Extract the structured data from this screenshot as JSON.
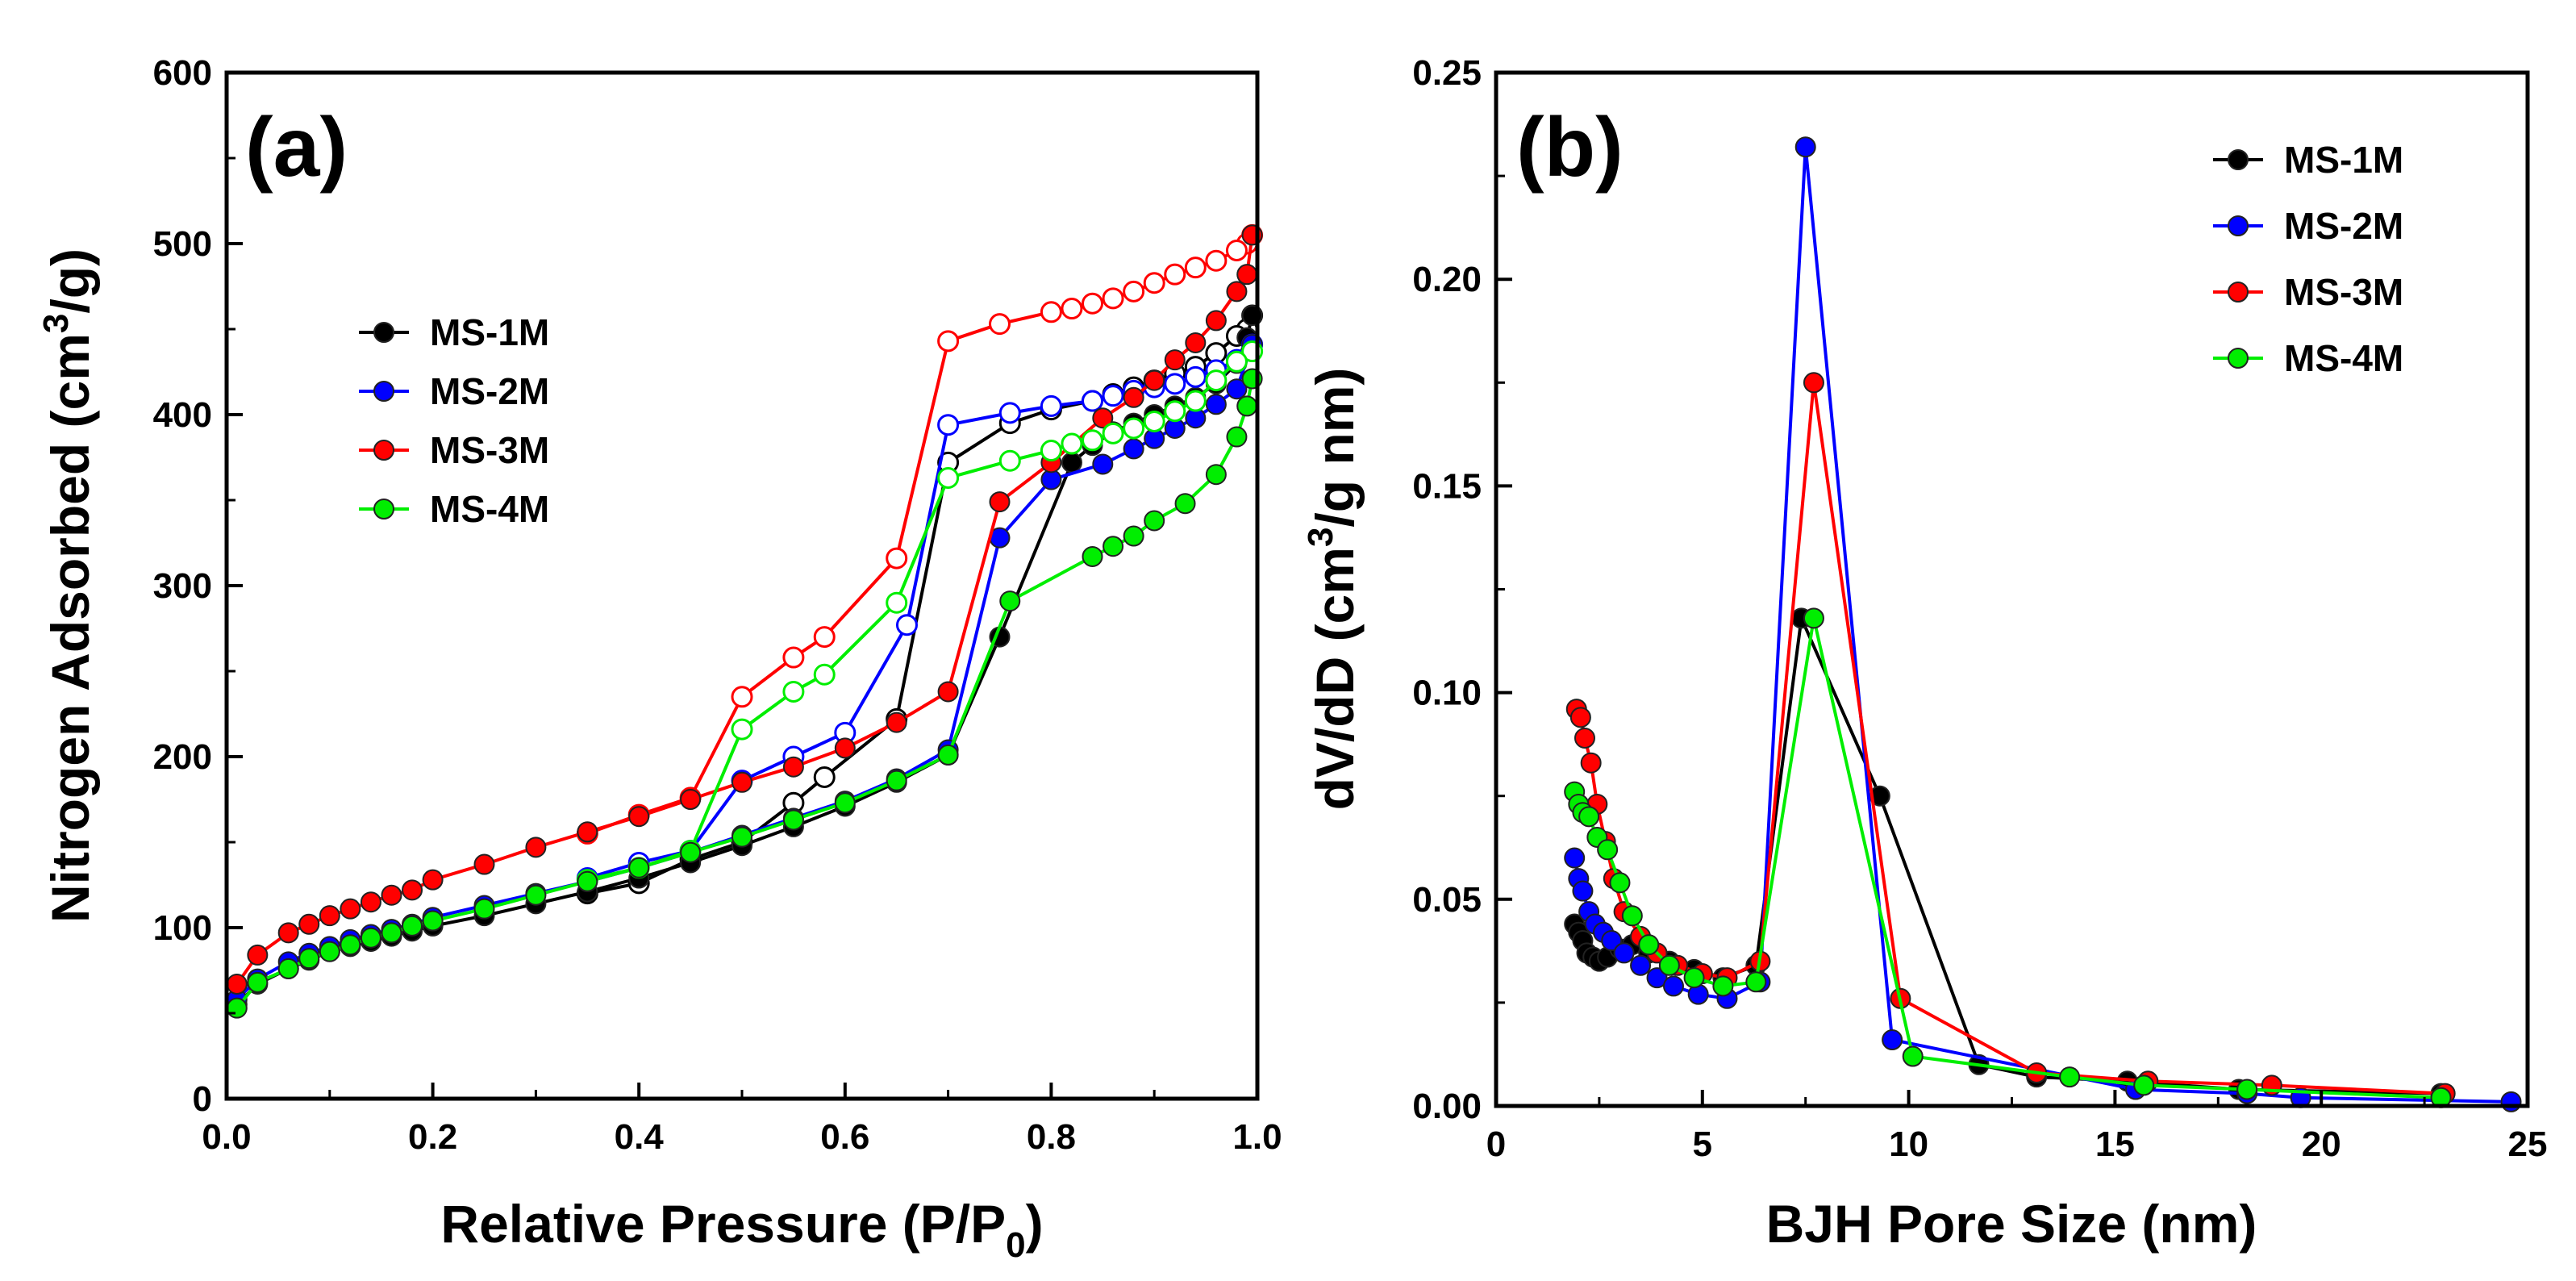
{
  "colors": {
    "MS-1M": "#000000",
    "MS-2M": "#0000ff",
    "MS-3M": "#ff0000",
    "MS-4M": "#00ee00"
  },
  "chart_data": [
    {
      "id": "a",
      "type": "line",
      "panel_label": "(a)",
      "xlabel_main": "Relative Pressure (P/P",
      "xlabel_sub": "0",
      "xlabel_end": ")",
      "ylabel_main": "Nitrogen Adsorbed (cm",
      "ylabel_sup": "3",
      "ylabel_end": "/g)",
      "xlim": [
        0,
        1.0
      ],
      "ylim": [
        0,
        600
      ],
      "xticks": [
        "0.0",
        "0.2",
        "0.4",
        "0.6",
        "0.8",
        "1.0"
      ],
      "xtick_values": [
        0,
        0.2,
        0.4,
        0.6,
        0.8,
        1.0
      ],
      "yticks": [
        "0",
        "100",
        "200",
        "300",
        "400",
        "500",
        "600"
      ],
      "ytick_values": [
        0,
        100,
        200,
        300,
        400,
        500,
        600
      ],
      "legend_position": "upper-left",
      "legend": [
        "MS-1M",
        "MS-2M",
        "MS-3M",
        "MS-4M"
      ],
      "series": [
        {
          "name": "MS-1M",
          "adsorption": {
            "x": [
              0.01,
              0.03,
              0.06,
              0.08,
              0.1,
              0.12,
              0.14,
              0.16,
              0.18,
              0.2,
              0.25,
              0.3,
              0.35,
              0.4,
              0.45,
              0.5,
              0.55,
              0.6,
              0.65,
              0.7,
              0.75,
              0.82,
              0.84,
              0.86,
              0.88,
              0.9,
              0.92,
              0.94,
              0.96,
              0.98,
              0.99,
              0.995
            ],
            "y": [
              55,
              67,
              76,
              81,
              86,
              89,
              92,
              95,
              98,
              101,
              107,
              114,
              121,
              129,
              138,
              148,
              159,
              171,
              185,
              201,
              270,
              372,
              382,
              390,
              395,
              400,
              405,
              410,
              418,
              430,
              445,
              458
            ]
          },
          "desorption": {
            "x": [
              0.995,
              0.99,
              0.98,
              0.96,
              0.94,
              0.92,
              0.9,
              0.88,
              0.86,
              0.84,
              0.8,
              0.76,
              0.7,
              0.65,
              0.58,
              0.55,
              0.5,
              0.45,
              0.4,
              0.35
            ],
            "y": [
              458,
              450,
              446,
              436,
              428,
              424,
              420,
              416,
              412,
              408,
              403,
              395,
              372,
              222,
              188,
              173,
              150,
              140,
              126,
              120
            ]
          }
        },
        {
          "name": "MS-2M",
          "adsorption": {
            "x": [
              0.01,
              0.03,
              0.06,
              0.08,
              0.1,
              0.12,
              0.14,
              0.16,
              0.18,
              0.2,
              0.25,
              0.3,
              0.35,
              0.4,
              0.45,
              0.5,
              0.55,
              0.6,
              0.65,
              0.7,
              0.75,
              0.8,
              0.85,
              0.88,
              0.9,
              0.92,
              0.94,
              0.96,
              0.98,
              0.995
            ],
            "y": [
              58,
              70,
              80,
              85,
              89,
              93,
              96,
              99,
              102,
              106,
              113,
              120,
              127,
              135,
              144,
              154,
              164,
              174,
              187,
              204,
              328,
              362,
              371,
              380,
              386,
              392,
              398,
              406,
              415,
              441
            ]
          },
          "desorption": {
            "x": [
              0.995,
              0.98,
              0.96,
              0.94,
              0.92,
              0.9,
              0.88,
              0.86,
              0.84,
              0.8,
              0.76,
              0.7,
              0.66,
              0.6,
              0.55,
              0.5,
              0.45,
              0.4,
              0.35
            ],
            "y": [
              441,
              432,
              426,
              422,
              418,
              416,
              414,
              411,
              408,
              405,
              401,
              394,
              277,
              214,
              200,
              186,
              145,
              138,
              129
            ]
          }
        },
        {
          "name": "MS-3M",
          "adsorption": {
            "x": [
              0.01,
              0.03,
              0.06,
              0.08,
              0.1,
              0.12,
              0.14,
              0.16,
              0.18,
              0.2,
              0.25,
              0.3,
              0.35,
              0.4,
              0.45,
              0.5,
              0.55,
              0.6,
              0.65,
              0.7,
              0.75,
              0.8,
              0.85,
              0.88,
              0.9,
              0.92,
              0.94,
              0.96,
              0.98,
              0.99,
              0.995
            ],
            "y": [
              67,
              84,
              97,
              102,
              107,
              111,
              115,
              119,
              122,
              128,
              137,
              147,
              156,
              165,
              175,
              185,
              194,
              205,
              220,
              238,
              349,
              372,
              398,
              410,
              420,
              432,
              442,
              455,
              472,
              482,
              505
            ]
          },
          "desorption": {
            "x": [
              0.995,
              0.99,
              0.98,
              0.96,
              0.94,
              0.92,
              0.9,
              0.88,
              0.86,
              0.84,
              0.82,
              0.8,
              0.75,
              0.7,
              0.65,
              0.58,
              0.55,
              0.5,
              0.45,
              0.4,
              0.35
            ],
            "y": [
              505,
              500,
              496,
              490,
              486,
              482,
              477,
              472,
              468,
              465,
              462,
              460,
              453,
              443,
              316,
              270,
              258,
              235,
              176,
              166,
              155
            ]
          }
        },
        {
          "name": "MS-4M",
          "adsorption": {
            "x": [
              0.01,
              0.03,
              0.06,
              0.08,
              0.1,
              0.12,
              0.14,
              0.16,
              0.18,
              0.2,
              0.25,
              0.3,
              0.35,
              0.4,
              0.45,
              0.5,
              0.55,
              0.6,
              0.65,
              0.7,
              0.76,
              0.84,
              0.86,
              0.88,
              0.9,
              0.93,
              0.96,
              0.98,
              0.99,
              0.995
            ],
            "y": [
              53,
              68,
              76,
              82,
              86,
              90,
              94,
              97,
              101,
              104,
              111,
              119,
              127,
              135,
              144,
              153,
              163,
              173,
              186,
              201,
              291,
              317,
              323,
              329,
              338,
              348,
              365,
              387,
              405,
              421
            ]
          },
          "desorption": {
            "x": [
              0.995,
              0.98,
              0.96,
              0.94,
              0.92,
              0.9,
              0.88,
              0.86,
              0.84,
              0.82,
              0.8,
              0.76,
              0.7,
              0.65,
              0.58,
              0.55,
              0.5,
              0.45,
              0.4,
              0.35
            ],
            "y": [
              437,
              431,
              420,
              408,
              402,
              396,
              392,
              389,
              385,
              383,
              379,
              373,
              363,
              290,
              248,
              238,
              216,
              145,
              135,
              128
            ]
          }
        }
      ]
    },
    {
      "id": "b",
      "type": "line",
      "panel_label": "(b)",
      "xlabel": "BJH Pore Size (nm)",
      "ylabel_main": "dV/dD (cm",
      "ylabel_sup": "3",
      "ylabel_end": "/g nm)",
      "xlim": [
        0,
        25
      ],
      "ylim": [
        0,
        0.25
      ],
      "xticks": [
        "0",
        "5",
        "10",
        "15",
        "20",
        "25"
      ],
      "xtick_values": [
        0,
        5,
        10,
        15,
        20,
        25
      ],
      "yticks": [
        "0.00",
        "0.05",
        "0.10",
        "0.15",
        "0.20",
        "0.25"
      ],
      "ytick_values": [
        0,
        0.05,
        0.1,
        0.15,
        0.2,
        0.25
      ],
      "legend_position": "upper-right",
      "legend": [
        "MS-1M",
        "MS-2M",
        "MS-3M",
        "MS-4M"
      ],
      "series": [
        {
          "name": "MS-1M",
          "x": [
            1.9,
            2.0,
            2.1,
            2.2,
            2.35,
            2.5,
            2.7,
            3.0,
            3.3,
            3.7,
            4.2,
            4.8,
            5.5,
            6.3,
            7.4,
            9.3,
            11.7,
            13.1,
            15.3,
            18.0,
            22.9
          ],
          "y": [
            0.044,
            0.042,
            0.04,
            0.037,
            0.036,
            0.035,
            0.036,
            0.038,
            0.039,
            0.037,
            0.035,
            0.033,
            0.031,
            0.034,
            0.118,
            0.075,
            0.01,
            0.007,
            0.006,
            0.004,
            0.003
          ]
        },
        {
          "name": "MS-2M",
          "x": [
            1.9,
            2.0,
            2.1,
            2.25,
            2.4,
            2.6,
            2.8,
            3.1,
            3.5,
            3.9,
            4.3,
            4.9,
            5.6,
            6.4,
            7.5,
            9.6,
            15.5,
            18.2,
            19.5,
            24.6
          ],
          "y": [
            0.06,
            0.055,
            0.052,
            0.047,
            0.044,
            0.042,
            0.04,
            0.037,
            0.034,
            0.031,
            0.029,
            0.027,
            0.026,
            0.03,
            0.232,
            0.016,
            0.004,
            0.003,
            0.002,
            0.001
          ]
        },
        {
          "name": "MS-3M",
          "x": [
            1.95,
            2.05,
            2.15,
            2.3,
            2.45,
            2.65,
            2.85,
            3.1,
            3.5,
            3.9,
            4.4,
            5.0,
            5.6,
            6.4,
            7.7,
            9.8,
            13.1,
            15.8,
            18.8,
            23.0
          ],
          "y": [
            0.096,
            0.094,
            0.089,
            0.083,
            0.073,
            0.064,
            0.055,
            0.047,
            0.041,
            0.037,
            0.034,
            0.032,
            0.031,
            0.035,
            0.175,
            0.026,
            0.008,
            0.006,
            0.005,
            0.003
          ]
        },
        {
          "name": "MS-4M",
          "x": [
            1.9,
            2.0,
            2.1,
            2.25,
            2.45,
            2.7,
            3.0,
            3.3,
            3.7,
            4.2,
            4.8,
            5.5,
            6.3,
            7.7,
            10.1,
            13.9,
            15.7,
            18.2,
            22.9
          ],
          "y": [
            0.076,
            0.073,
            0.071,
            0.07,
            0.065,
            0.062,
            0.054,
            0.046,
            0.039,
            0.034,
            0.031,
            0.029,
            0.03,
            0.118,
            0.012,
            0.007,
            0.005,
            0.004,
            0.002
          ]
        }
      ]
    }
  ]
}
